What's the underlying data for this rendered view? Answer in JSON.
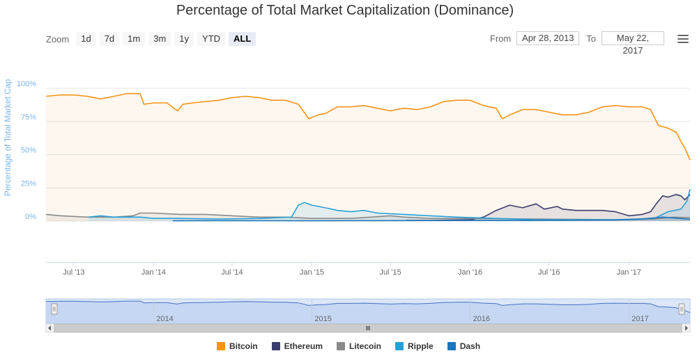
{
  "title": "Percentage of Total Market Capitalization (Dominance)",
  "zoom": {
    "label": "Zoom",
    "buttons": [
      {
        "label": "1d",
        "active": false
      },
      {
        "label": "7d",
        "active": false
      },
      {
        "label": "1m",
        "active": false
      },
      {
        "label": "3m",
        "active": false
      },
      {
        "label": "1y",
        "active": false
      },
      {
        "label": "YTD",
        "active": false
      },
      {
        "label": "ALL",
        "active": true
      }
    ]
  },
  "range": {
    "from_label": "From",
    "from_value": "Apr 28, 2013",
    "to_label": "To",
    "to_value": "May 22, 2017"
  },
  "menu_icon": "hamburger-menu-icon",
  "chart_data": {
    "type": "area",
    "title": "Percentage of Total Market Capitalization (Dominance)",
    "ylabel": "Percentage of Total Market Cap",
    "ylim": [
      0,
      100
    ],
    "y_ticks": [
      "0%",
      "25%",
      "50%",
      "75%",
      "100%"
    ],
    "x_ticks": [
      "Jul '13",
      "Jan '14",
      "Jul '14",
      "Jan '15",
      "Jul '15",
      "Jan '16",
      "Jul '16",
      "Jan '17"
    ],
    "xlim": [
      "2013-04-28",
      "2017-05-22"
    ],
    "navigator_ticks": [
      "2014",
      "2015",
      "2016",
      "2017"
    ],
    "grid": true,
    "legend_position": "bottom",
    "series": [
      {
        "name": "Bitcoin",
        "color": "#f7931a",
        "points": [
          [
            "2013-04-28",
            94
          ],
          [
            "2013-06-01",
            95
          ],
          [
            "2013-07-01",
            95
          ],
          [
            "2013-08-01",
            94
          ],
          [
            "2013-09-01",
            92
          ],
          [
            "2013-10-01",
            94
          ],
          [
            "2013-11-01",
            96
          ],
          [
            "2013-12-01",
            96
          ],
          [
            "2013-12-10",
            88
          ],
          [
            "2014-01-01",
            89
          ],
          [
            "2014-02-01",
            89
          ],
          [
            "2014-02-25",
            83
          ],
          [
            "2014-03-10",
            88
          ],
          [
            "2014-04-01",
            89
          ],
          [
            "2014-05-01",
            90
          ],
          [
            "2014-06-01",
            91
          ],
          [
            "2014-07-01",
            93
          ],
          [
            "2014-08-01",
            94
          ],
          [
            "2014-09-01",
            93
          ],
          [
            "2014-10-01",
            91
          ],
          [
            "2014-11-01",
            91
          ],
          [
            "2014-12-01",
            88
          ],
          [
            "2014-12-25",
            77
          ],
          [
            "2015-01-15",
            80
          ],
          [
            "2015-02-01",
            81
          ],
          [
            "2015-03-01",
            86
          ],
          [
            "2015-04-01",
            86
          ],
          [
            "2015-05-01",
            87
          ],
          [
            "2015-06-01",
            85
          ],
          [
            "2015-07-01",
            83
          ],
          [
            "2015-08-01",
            85
          ],
          [
            "2015-09-01",
            84
          ],
          [
            "2015-10-01",
            86
          ],
          [
            "2015-11-01",
            90
          ],
          [
            "2015-12-01",
            91
          ],
          [
            "2016-01-01",
            91
          ],
          [
            "2016-02-01",
            87
          ],
          [
            "2016-03-01",
            85
          ],
          [
            "2016-03-15",
            77
          ],
          [
            "2016-04-01",
            80
          ],
          [
            "2016-05-01",
            84
          ],
          [
            "2016-06-01",
            84
          ],
          [
            "2016-07-01",
            82
          ],
          [
            "2016-08-01",
            80
          ],
          [
            "2016-09-01",
            80
          ],
          [
            "2016-10-01",
            82
          ],
          [
            "2016-11-01",
            86
          ],
          [
            "2016-12-01",
            87
          ],
          [
            "2017-01-01",
            86
          ],
          [
            "2017-02-01",
            86
          ],
          [
            "2017-02-20",
            84
          ],
          [
            "2017-03-10",
            72
          ],
          [
            "2017-04-01",
            70
          ],
          [
            "2017-04-20",
            67
          ],
          [
            "2017-05-01",
            60
          ],
          [
            "2017-05-10",
            55
          ],
          [
            "2017-05-22",
            46
          ]
        ]
      },
      {
        "name": "Ethereum",
        "color": "#3c3c6e",
        "points": [
          [
            "2015-08-07",
            0.5
          ],
          [
            "2015-10-01",
            0.5
          ],
          [
            "2016-01-01",
            1
          ],
          [
            "2016-02-01",
            3
          ],
          [
            "2016-03-01",
            8
          ],
          [
            "2016-04-01",
            12
          ],
          [
            "2016-05-01",
            10
          ],
          [
            "2016-06-01",
            13
          ],
          [
            "2016-06-20",
            9
          ],
          [
            "2016-07-20",
            11
          ],
          [
            "2016-08-01",
            9
          ],
          [
            "2016-09-01",
            8
          ],
          [
            "2016-10-01",
            8
          ],
          [
            "2016-11-01",
            8
          ],
          [
            "2016-12-01",
            7
          ],
          [
            "2017-01-01",
            4
          ],
          [
            "2017-02-01",
            5
          ],
          [
            "2017-02-20",
            7
          ],
          [
            "2017-03-05",
            13
          ],
          [
            "2017-03-20",
            19
          ],
          [
            "2017-04-01",
            18
          ],
          [
            "2017-04-20",
            20
          ],
          [
            "2017-05-01",
            19
          ],
          [
            "2017-05-10",
            16
          ],
          [
            "2017-05-22",
            20
          ]
        ]
      },
      {
        "name": "Litecoin",
        "color": "#8a8a8a",
        "points": [
          [
            "2013-04-28",
            5
          ],
          [
            "2013-06-01",
            4
          ],
          [
            "2013-08-01",
            3
          ],
          [
            "2013-10-01",
            3
          ],
          [
            "2013-11-15",
            4
          ],
          [
            "2013-12-01",
            6
          ],
          [
            "2014-01-01",
            6
          ],
          [
            "2014-03-01",
            5
          ],
          [
            "2014-05-01",
            5
          ],
          [
            "2014-07-01",
            4
          ],
          [
            "2014-09-01",
            3
          ],
          [
            "2014-11-01",
            3
          ],
          [
            "2015-01-01",
            2
          ],
          [
            "2015-04-01",
            2
          ],
          [
            "2015-07-01",
            4
          ],
          [
            "2015-08-01",
            3
          ],
          [
            "2015-10-01",
            2
          ],
          [
            "2016-01-01",
            2
          ],
          [
            "2016-06-01",
            1.5
          ],
          [
            "2016-12-01",
            1
          ],
          [
            "2017-03-01",
            1.5
          ],
          [
            "2017-04-15",
            3
          ],
          [
            "2017-05-22",
            2.5
          ]
        ]
      },
      {
        "name": "Ripple",
        "color": "#27a1da",
        "points": [
          [
            "2013-08-04",
            3
          ],
          [
            "2013-09-01",
            4
          ],
          [
            "2013-10-01",
            3
          ],
          [
            "2013-12-01",
            3
          ],
          [
            "2014-01-01",
            2
          ],
          [
            "2014-03-01",
            2
          ],
          [
            "2014-06-01",
            1.5
          ],
          [
            "2014-09-01",
            2
          ],
          [
            "2014-11-15",
            3
          ],
          [
            "2014-12-01",
            12
          ],
          [
            "2014-12-15",
            14
          ],
          [
            "2015-01-01",
            12
          ],
          [
            "2015-02-01",
            10
          ],
          [
            "2015-03-01",
            8
          ],
          [
            "2015-04-01",
            7
          ],
          [
            "2015-05-01",
            8
          ],
          [
            "2015-06-01",
            6
          ],
          [
            "2015-08-01",
            5
          ],
          [
            "2015-10-01",
            4
          ],
          [
            "2015-12-01",
            3
          ],
          [
            "2016-03-01",
            2
          ],
          [
            "2016-06-01",
            1
          ],
          [
            "2016-09-01",
            1
          ],
          [
            "2016-12-01",
            1
          ],
          [
            "2017-03-01",
            2
          ],
          [
            "2017-04-01",
            7
          ],
          [
            "2017-05-01",
            9
          ],
          [
            "2017-05-15",
            15
          ],
          [
            "2017-05-22",
            24
          ]
        ]
      },
      {
        "name": "Dash",
        "color": "#1c75bc",
        "points": [
          [
            "2014-02-14",
            0.2
          ],
          [
            "2014-06-01",
            0.3
          ],
          [
            "2015-01-01",
            0.2
          ],
          [
            "2015-06-01",
            0.3
          ],
          [
            "2016-01-01",
            0.4
          ],
          [
            "2016-06-01",
            0.5
          ],
          [
            "2016-12-01",
            0.8
          ],
          [
            "2017-02-01",
            1.5
          ],
          [
            "2017-03-20",
            3
          ],
          [
            "2017-05-22",
            1.3
          ]
        ]
      }
    ]
  }
}
